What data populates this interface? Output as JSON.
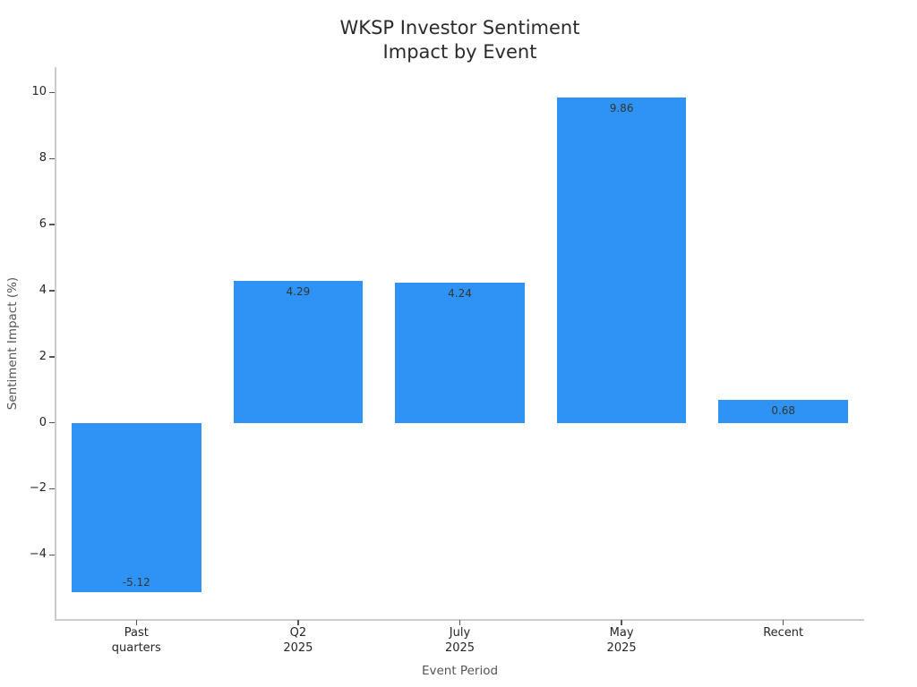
{
  "chart_data": {
    "type": "bar",
    "title": "WKSP Investor Sentiment\nImpact by Event",
    "xlabel": "Event Period",
    "ylabel": "Sentiment Impact (%)",
    "categories": [
      "Past\nquarters",
      "Q2\n2025",
      "July\n2025",
      "May\n2025",
      "Recent"
    ],
    "values": [
      -5.12,
      4.29,
      4.24,
      9.86,
      0.68
    ],
    "value_labels": [
      "-5.12",
      "4.29",
      "4.24",
      "9.86",
      "0.68"
    ],
    "yticks": [
      -4,
      -2,
      0,
      2,
      4,
      6,
      8,
      10
    ],
    "ytick_labels": [
      "−4",
      "−2",
      "0",
      "2",
      "4",
      "6",
      "8",
      "10"
    ],
    "ylim": [
      -5.97,
      10.77
    ],
    "bar_width_fraction": 0.8,
    "grid": false,
    "legend": null,
    "colors": {
      "bar": "#2e93f5",
      "title_text": "#2b2b2b",
      "tick_text": "#262626",
      "axis_label_text": "#555555",
      "value_label_text": "#353535",
      "spine": "#cccccc",
      "tick_mark": "#555555",
      "background": "#ffffff"
    }
  }
}
